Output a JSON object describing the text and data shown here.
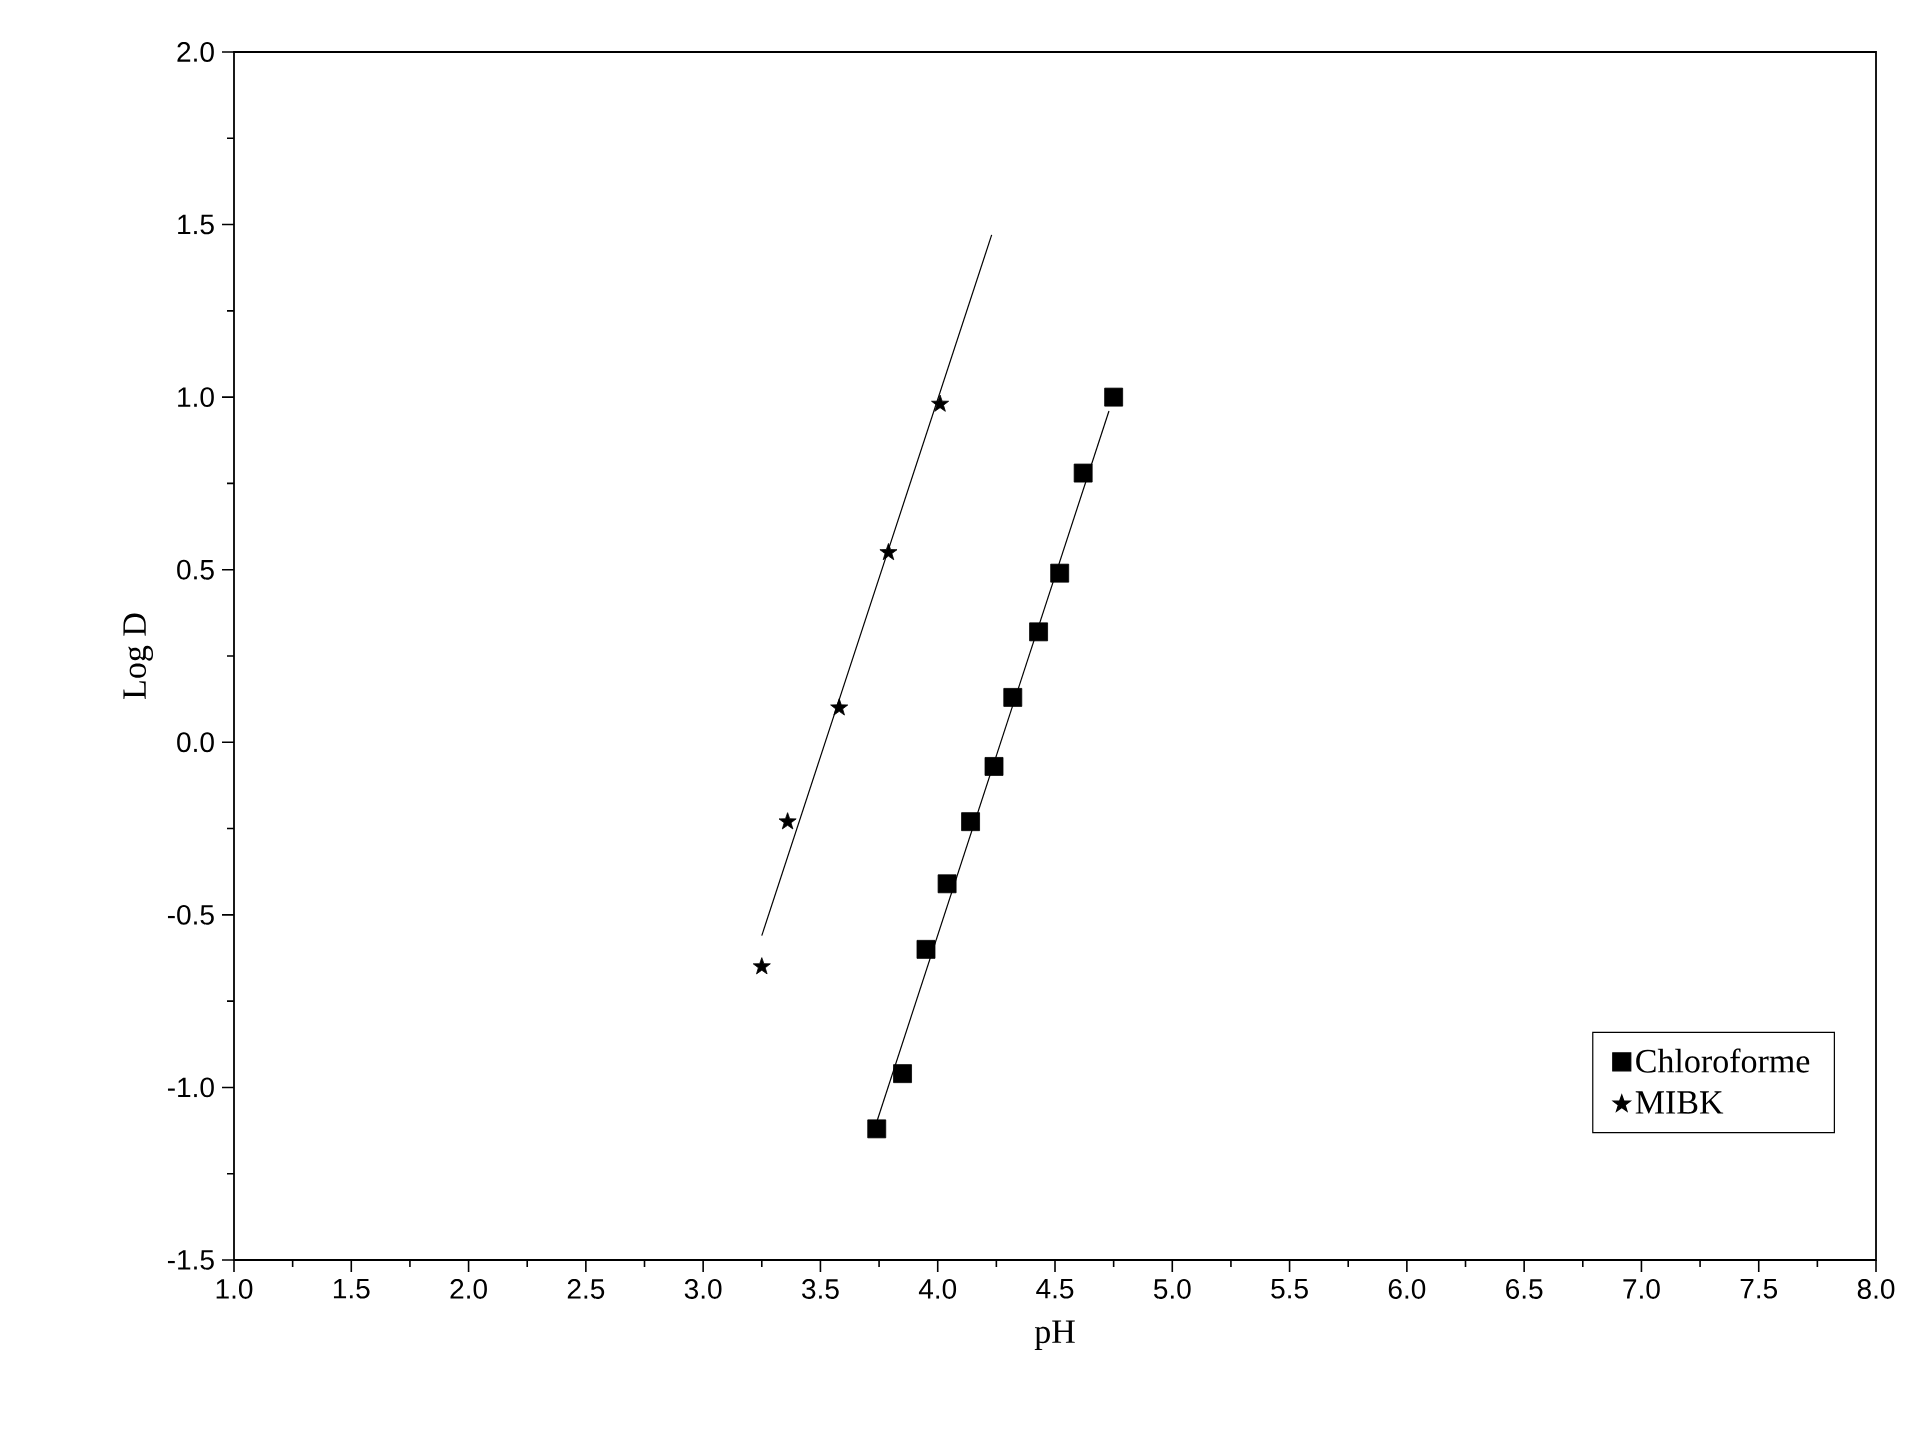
{
  "chart_data": {
    "type": "scatter",
    "xlabel": "pH",
    "ylabel": "Log D",
    "xlim": [
      1.0,
      8.0
    ],
    "ylim": [
      -1.5,
      2.0
    ],
    "xticks": [
      {
        "value": 1.0,
        "label": "1.0"
      },
      {
        "value": 1.5,
        "label": "1.5"
      },
      {
        "value": 2.0,
        "label": "2.0"
      },
      {
        "value": 2.5,
        "label": "2.5"
      },
      {
        "value": 3.0,
        "label": "3.0"
      },
      {
        "value": 3.5,
        "label": "3.5"
      },
      {
        "value": 4.0,
        "label": "4.0"
      },
      {
        "value": 4.5,
        "label": "4.5"
      },
      {
        "value": 5.0,
        "label": "5.0"
      },
      {
        "value": 5.5,
        "label": "5.5"
      },
      {
        "value": 6.0,
        "label": "6.0"
      },
      {
        "value": 6.5,
        "label": "6.5"
      },
      {
        "value": 7.0,
        "label": "7.0"
      },
      {
        "value": 7.5,
        "label": "7.5"
      },
      {
        "value": 8.0,
        "label": "8.0"
      }
    ],
    "yticks": [
      {
        "value": -1.5,
        "label": "-1.5"
      },
      {
        "value": -1.0,
        "label": "-1.0"
      },
      {
        "value": -0.5,
        "label": "-0.5"
      },
      {
        "value": 0.0,
        "label": "0.0"
      },
      {
        "value": 0.5,
        "label": "0.5"
      },
      {
        "value": 1.0,
        "label": "1.0"
      },
      {
        "value": 1.5,
        "label": "1.5"
      },
      {
        "value": 2.0,
        "label": "2.0"
      }
    ],
    "legend": "bottom right",
    "grid": false,
    "series": [
      {
        "name": "Chloroforme",
        "color": "#000000",
        "marker": "square",
        "x": [
          3.74,
          3.85,
          3.95,
          4.04,
          4.14,
          4.24,
          4.32,
          4.43,
          4.52,
          4.62,
          4.75
        ],
        "values": [
          -1.12,
          -0.96,
          -0.6,
          -0.41,
          -0.23,
          -0.07,
          0.13,
          0.32,
          0.49,
          0.78,
          1.0
        ]
      },
      {
        "name": "MIBK",
        "color": "#000000",
        "marker": "star",
        "x": [
          3.25,
          3.36,
          3.58,
          3.79,
          4.01
        ],
        "values": [
          -0.65,
          -0.23,
          0.1,
          0.55,
          0.98
        ]
      },
      {
        "type": "line",
        "color": "#000000",
        "marker": "none",
        "x": [
          3.74,
          4.73
        ],
        "values": [
          -1.1,
          0.96
        ]
      },
      {
        "type": "line",
        "color": "#000000",
        "marker": "none",
        "x": [
          3.25,
          4.23
        ],
        "values": [
          -0.56,
          1.47
        ]
      }
    ]
  }
}
